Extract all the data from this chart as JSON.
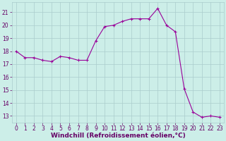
{
  "x": [
    0,
    1,
    2,
    3,
    4,
    5,
    6,
    7,
    8,
    9,
    10,
    11,
    12,
    13,
    14,
    15,
    16,
    17,
    18,
    19,
    20,
    21,
    22,
    23
  ],
  "y": [
    18.0,
    17.5,
    17.5,
    17.3,
    17.2,
    17.6,
    17.5,
    17.3,
    17.3,
    18.8,
    19.9,
    20.0,
    20.3,
    20.5,
    20.5,
    20.5,
    21.3,
    20.0,
    19.5,
    15.1,
    13.3,
    12.9,
    13.0,
    12.9
  ],
  "line_color": "#990099",
  "marker": "+",
  "marker_size": 3,
  "marker_lw": 0.8,
  "bg_color": "#cceee8",
  "grid_color": "#aacccc",
  "xlabel": "Windchill (Refroidissement éolien,°C)",
  "xlim": [
    -0.5,
    23.5
  ],
  "ylim": [
    12.5,
    21.8
  ],
  "yticks": [
    13,
    14,
    15,
    16,
    17,
    18,
    19,
    20,
    21
  ],
  "xticks": [
    0,
    1,
    2,
    3,
    4,
    5,
    6,
    7,
    8,
    9,
    10,
    11,
    12,
    13,
    14,
    15,
    16,
    17,
    18,
    19,
    20,
    21,
    22,
    23
  ],
  "tick_label_fontsize": 5.5,
  "xlabel_fontsize": 6.5,
  "line_width": 0.8,
  "label_color": "#660066",
  "spine_color": "#aacccc"
}
